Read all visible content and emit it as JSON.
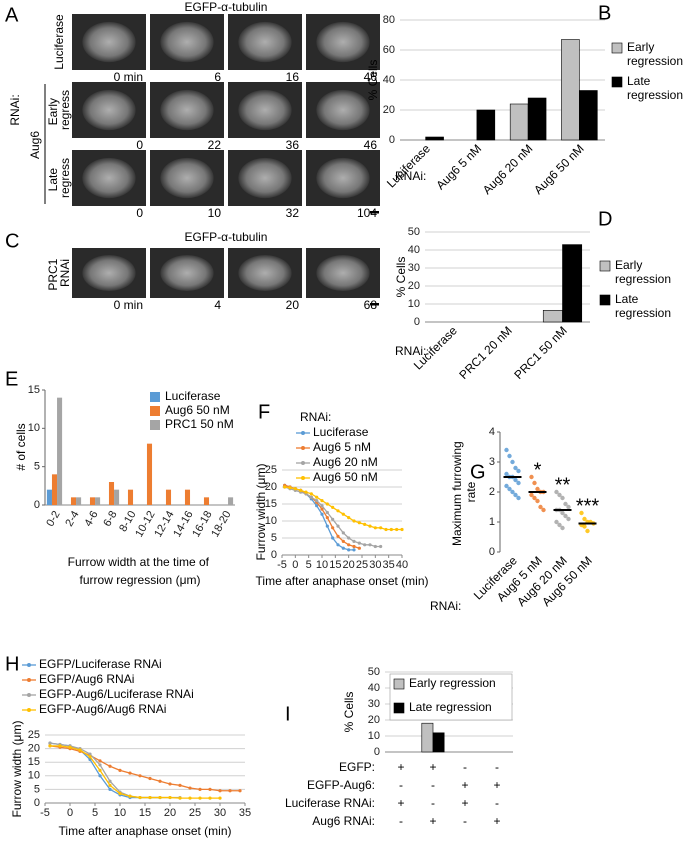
{
  "micrographs": [
    {
      "label": "A",
      "title": "EGFP-α-tubulin",
      "group_label": "RNAi:",
      "subgroup_label": "Aug6",
      "rows": [
        {
          "name": "Luciferase",
          "times": [
            "0 min",
            "6",
            "16",
            "46"
          ]
        },
        {
          "name": "Early regress",
          "times": [
            "0",
            "22",
            "36",
            "46"
          ]
        },
        {
          "name": "Late regress",
          "times": [
            "0",
            "10",
            "32",
            "104"
          ]
        }
      ]
    },
    {
      "label": "C",
      "title": "EGFP-α-tubulin",
      "rows": [
        {
          "name": "PRC1 RNAi",
          "times": [
            "0 min",
            "4",
            "20",
            "68"
          ]
        }
      ]
    }
  ],
  "chart_data": [
    {
      "label": "B",
      "type": "bar",
      "categories": [
        "Luciferase",
        "Aug6 5 nM",
        "Aug6 20 nM",
        "Aug6 50 nM"
      ],
      "x_group_label": "RNAi:",
      "ylabel": "% Cells",
      "ylim": [
        0,
        80
      ],
      "yticks": [
        0,
        20,
        40,
        60,
        80
      ],
      "grid": true,
      "legend": "right",
      "series": [
        {
          "name": "Early regression",
          "color": "#c0c0c0",
          "values": [
            0,
            0,
            24,
            67
          ]
        },
        {
          "name": "Late regression",
          "color": "#000000",
          "values": [
            2,
            20,
            28,
            33
          ]
        }
      ]
    },
    {
      "label": "D",
      "type": "bar",
      "categories": [
        "Luciferase",
        "PRC1 20 nM",
        "PRC1 50 nM"
      ],
      "x_group_label": "RNAi:",
      "ylabel": "% Cells",
      "ylim": [
        0,
        50
      ],
      "yticks": [
        0,
        10,
        20,
        30,
        40,
        50
      ],
      "grid": true,
      "legend": "right",
      "series": [
        {
          "name": "Early regression",
          "color": "#c0c0c0",
          "values": [
            0,
            0,
            6.5
          ]
        },
        {
          "name": "Late regression",
          "color": "#000000",
          "values": [
            0,
            0,
            43
          ]
        }
      ]
    },
    {
      "label": "E",
      "type": "bar",
      "categories": [
        "0-2",
        "2-4",
        "4-6",
        "6-8",
        "8-10",
        "10-12",
        "12-14",
        "14-16",
        "16-18",
        "18-20"
      ],
      "ylabel": "# of cells",
      "xlabel": "Furrow width at the time of furrow regression (μm)",
      "ylim": [
        0,
        15
      ],
      "yticks": [
        0,
        5,
        10,
        15
      ],
      "grid": false,
      "legend": "upper right",
      "series": [
        {
          "name": "Luciferase",
          "color": "#5b9bd5",
          "values": [
            2,
            0,
            0,
            0,
            0,
            0,
            0,
            0,
            0,
            0
          ]
        },
        {
          "name": "Aug6 50 nM",
          "color": "#ed7d31",
          "values": [
            4,
            1,
            1,
            3,
            2,
            8,
            2,
            2,
            1,
            0
          ]
        },
        {
          "name": "PRC1 50 nM",
          "color": "#a5a5a5",
          "values": [
            14,
            1,
            1,
            2,
            0,
            0,
            0,
            0,
            0,
            1
          ]
        }
      ]
    },
    {
      "label": "F",
      "type": "line",
      "legend_title": "RNAi:",
      "legend": "top",
      "ylabel": "Furrow width (μm)",
      "xlabel": "Time after anaphase onset (min)",
      "xlim": [
        -5,
        40
      ],
      "xticks": [
        -5,
        0,
        5,
        10,
        15,
        20,
        25,
        30,
        35,
        40
      ],
      "ylim": [
        0,
        25
      ],
      "yticks": [
        0,
        5,
        10,
        15,
        20,
        25
      ],
      "grid": true,
      "series": [
        {
          "name": "Luciferase",
          "color": "#5b9bd5",
          "x": [
            -4,
            -2,
            0,
            2,
            4,
            6,
            8,
            10,
            12,
            14,
            16,
            18,
            20,
            22
          ],
          "values": [
            20.5,
            20,
            19.5,
            19,
            18,
            16.5,
            14.5,
            12,
            8.5,
            5,
            3,
            2,
            1.5,
            1.5
          ]
        },
        {
          "name": "Aug6 5 nM",
          "color": "#ed7d31",
          "x": [
            -4,
            -2,
            0,
            2,
            4,
            6,
            8,
            10,
            12,
            14,
            16,
            18,
            20,
            22,
            24
          ],
          "values": [
            20.5,
            20,
            19.5,
            19,
            18,
            17,
            15.5,
            13.5,
            11,
            8,
            5.5,
            4,
            3,
            2.5,
            2
          ]
        },
        {
          "name": "Aug6 20 nM",
          "color": "#a5a5a5",
          "x": [
            -4,
            -2,
            0,
            2,
            4,
            6,
            8,
            10,
            12,
            14,
            16,
            18,
            20,
            22,
            24,
            26,
            28,
            30,
            32
          ],
          "values": [
            20,
            19.5,
            19,
            18.5,
            18,
            17,
            16,
            14.5,
            12.5,
            10.5,
            8.5,
            6.5,
            5,
            4,
            3.5,
            3,
            3,
            2.5,
            2.5
          ]
        },
        {
          "name": "Aug6 50 nM",
          "color": "#ffc000",
          "x": [
            -4,
            -2,
            0,
            2,
            4,
            6,
            8,
            10,
            12,
            14,
            16,
            18,
            20,
            22,
            24,
            26,
            28,
            30,
            32,
            34,
            36,
            38,
            40
          ],
          "values": [
            20,
            19.8,
            19.5,
            19,
            18.5,
            18,
            17,
            16,
            15,
            14,
            13,
            12,
            11,
            10,
            9.5,
            9,
            8.5,
            8,
            8,
            7.5,
            7.5,
            7.5,
            7.5
          ]
        }
      ]
    },
    {
      "label": "G",
      "type": "dot",
      "categories": [
        "Luciferase",
        "Aug6 5 nM",
        "Aug6 20 nM",
        "Aug6 50 nM"
      ],
      "x_group_label": "RNAi:",
      "ylabel": "Maximum furrowing rate (μm/min)",
      "ylim": [
        0,
        4
      ],
      "yticks": [
        0,
        1,
        2,
        3,
        4
      ],
      "colors": [
        "#5b9bd5",
        "#ed7d31",
        "#a5a5a5",
        "#ffc000"
      ],
      "points": [
        [
          3.4,
          3.2,
          3.0,
          2.8,
          2.7,
          2.6,
          2.5,
          2.5,
          2.4,
          2.3,
          2.2,
          2.1,
          2.0,
          1.9,
          1.8
        ],
        [
          2.5,
          2.3,
          2.1,
          2.0,
          2.0,
          1.9,
          1.8,
          1.7,
          1.5,
          1.4
        ],
        [
          2.0,
          1.9,
          1.8,
          1.6,
          1.5,
          1.4,
          1.4,
          1.3,
          1.2,
          1.1,
          1.0,
          0.9,
          0.8
        ],
        [
          1.3,
          1.1,
          1.0,
          1.0,
          0.95,
          0.9,
          0.85,
          0.7
        ]
      ],
      "medians": [
        2.5,
        2.0,
        1.4,
        0.95
      ],
      "annotations": [
        null,
        "*",
        "**",
        "***"
      ]
    },
    {
      "label": "H",
      "type": "line",
      "legend": "top",
      "ylabel": "Furrow width (μm)",
      "xlabel": "Time after anaphase onset (min)",
      "xlim": [
        -5,
        35
      ],
      "xticks": [
        -5,
        0,
        5,
        10,
        15,
        20,
        25,
        30,
        35
      ],
      "ylim": [
        0,
        25
      ],
      "yticks": [
        0,
        5,
        10,
        15,
        20,
        25
      ],
      "grid": true,
      "series": [
        {
          "name": "EGFP/Luciferase RNAi",
          "color": "#5b9bd5",
          "x": [
            -4,
            -2,
            0,
            2,
            4,
            6,
            8,
            10,
            12,
            14,
            16,
            18
          ],
          "values": [
            22,
            21.5,
            21,
            19.5,
            16,
            10,
            5,
            3,
            2,
            2,
            2,
            2
          ]
        },
        {
          "name": "EGFP/Aug6 RNAi",
          "color": "#ed7d31",
          "x": [
            -4,
            -2,
            0,
            2,
            4,
            6,
            8,
            10,
            12,
            14,
            16,
            18,
            20,
            22,
            24,
            26,
            28,
            30,
            32,
            34
          ],
          "values": [
            21,
            20.5,
            20,
            19,
            17.5,
            15.5,
            13.5,
            12,
            11,
            10,
            9,
            8,
            7,
            6.5,
            5.5,
            5,
            5,
            4.5,
            4.5,
            4.5
          ]
        },
        {
          "name": "EGFP-Aug6/Luciferase RNAi",
          "color": "#a5a5a5",
          "x": [
            -4,
            -2,
            0,
            2,
            4,
            6,
            8,
            10,
            12,
            14,
            16,
            18,
            20,
            22
          ],
          "values": [
            22,
            21.5,
            21,
            20,
            18,
            14,
            8,
            4,
            2.5,
            2,
            2,
            2,
            2,
            2
          ]
        },
        {
          "name": "EGFP-Aug6/Aug6 RNAi",
          "color": "#ffc000",
          "x": [
            -4,
            -2,
            0,
            2,
            4,
            6,
            8,
            10,
            12,
            14,
            16,
            18,
            20,
            22,
            24,
            26,
            28,
            30
          ],
          "values": [
            21,
            21,
            20.5,
            19.5,
            17,
            12,
            6.5,
            3.5,
            2.5,
            2,
            2,
            2,
            2,
            1.8,
            1.8,
            1.8,
            1.8,
            1.8
          ]
        }
      ]
    },
    {
      "label": "I",
      "type": "bar",
      "ylabel": "% Cells",
      "ylim": [
        0,
        50
      ],
      "yticks": [
        0,
        10,
        20,
        30,
        40,
        50
      ],
      "grid": true,
      "legend": "upper right",
      "series": [
        {
          "name": "Early regression",
          "color": "#c0c0c0",
          "values": [
            0,
            18,
            0,
            0
          ]
        },
        {
          "name": "Late regression",
          "color": "#000000",
          "values": [
            0,
            12,
            0,
            0
          ]
        }
      ],
      "conditions": [
        {
          "label": "EGFP:",
          "values": [
            "+",
            "+",
            "-",
            "-"
          ]
        },
        {
          "label": "EGFP-Aug6:",
          "values": [
            "-",
            "-",
            "+",
            "+"
          ]
        },
        {
          "label": "Luciferase RNAi:",
          "values": [
            "+",
            "-",
            "+",
            "-"
          ]
        },
        {
          "label": "Aug6 RNAi:",
          "values": [
            "-",
            "+",
            "-",
            "+"
          ]
        }
      ]
    }
  ]
}
